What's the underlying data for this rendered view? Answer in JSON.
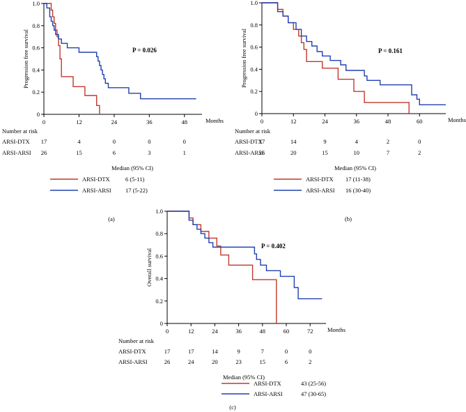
{
  "colors": {
    "arsi_dtx": "#c0392b",
    "arsi_arsi": "#2040b0",
    "axis": "#000000"
  },
  "chart_data": [
    {
      "type": "line",
      "panel_label": "(a)",
      "ylabel": "Progression free survival",
      "xlabel": "Months",
      "xticks": [
        0,
        12,
        24,
        36,
        48
      ],
      "xtick_labels": [
        "0",
        "12",
        "24",
        "36",
        "48"
      ],
      "yticks": [
        0,
        0.2,
        0.4,
        0.6,
        0.8,
        1.0
      ],
      "ytick_labels": [
        "0",
        "0.2",
        "0.4",
        "0.6",
        "0.8",
        "1.0"
      ],
      "xlim": [
        0,
        54
      ],
      "ylim": [
        0,
        1
      ],
      "p_value": "P = 0.026",
      "series": [
        {
          "name": "ARSI-DTX",
          "color_key": "arsi_dtx",
          "x": [
            0,
            2.5,
            3,
            3.5,
            4,
            4.5,
            5,
            5.5,
            6,
            10,
            14,
            18,
            19
          ],
          "y": [
            1,
            0.94,
            0.88,
            0.82,
            0.76,
            0.7,
            0.62,
            0.5,
            0.34,
            0.25,
            0.17,
            0.08,
            0
          ]
        },
        {
          "name": "ARSI-ARSI",
          "color_key": "arsi_arsi",
          "x": [
            0,
            1,
            2,
            2.5,
            3,
            3.5,
            4,
            5,
            6,
            8,
            12,
            18,
            18.5,
            19,
            19.5,
            20,
            20.5,
            21,
            22,
            24,
            29,
            33,
            52
          ],
          "y": [
            1,
            0.96,
            0.88,
            0.84,
            0.8,
            0.76,
            0.72,
            0.68,
            0.64,
            0.6,
            0.56,
            0.52,
            0.48,
            0.44,
            0.4,
            0.36,
            0.32,
            0.28,
            0.24,
            0.24,
            0.19,
            0.14,
            0.14
          ]
        }
      ],
      "risk": {
        "title": "Number at risk",
        "rows": [
          {
            "label": "ARSI-DTX",
            "values": [
              "17",
              "4",
              "0",
              "0",
              "0"
            ]
          },
          {
            "label": "ARSI-ARSI",
            "values": [
              "26",
              "15",
              "6",
              "3",
              "1"
            ]
          }
        ]
      },
      "median": {
        "title": "Median (95% CI)",
        "rows": [
          {
            "label": "ARSI-DTX",
            "value": "6 (5-11)"
          },
          {
            "label": "ARSI-ARSI",
            "value": "17 (5-22)"
          }
        ]
      }
    },
    {
      "type": "line",
      "panel_label": "(b)",
      "ylabel": "Progression free survival",
      "xlabel": "Months",
      "xticks": [
        0,
        12,
        24,
        36,
        48,
        60
      ],
      "xtick_labels": [
        "0",
        "12",
        "24",
        "36",
        "48",
        "60"
      ],
      "yticks": [
        0,
        0.2,
        0.4,
        0.6,
        0.8,
        1.0
      ],
      "ytick_labels": [
        "0",
        "0.2",
        "0.4",
        "0.6",
        "0.8",
        "1.0"
      ],
      "xlim": [
        0,
        70
      ],
      "ylim": [
        0,
        1
      ],
      "p_value": "P = 0.161",
      "series": [
        {
          "name": "ARSI-DTX",
          "color_key": "arsi_dtx",
          "x": [
            0,
            6,
            8,
            10,
            12,
            14,
            15,
            16,
            17,
            23,
            29,
            35,
            39,
            40,
            56
          ],
          "y": [
            1,
            0.94,
            0.88,
            0.82,
            0.76,
            0.7,
            0.64,
            0.58,
            0.47,
            0.41,
            0.31,
            0.2,
            0.1,
            0.1,
            0
          ]
        },
        {
          "name": "ARSI-ARSI",
          "color_key": "arsi_arsi",
          "x": [
            0,
            6,
            8,
            10,
            13,
            15,
            17,
            19,
            21,
            23,
            26,
            30,
            32,
            39,
            40,
            45,
            57,
            59,
            60,
            70
          ],
          "y": [
            1,
            0.92,
            0.88,
            0.82,
            0.76,
            0.7,
            0.65,
            0.61,
            0.56,
            0.52,
            0.48,
            0.44,
            0.39,
            0.34,
            0.3,
            0.26,
            0.17,
            0.13,
            0.08,
            0.08
          ]
        }
      ],
      "risk": {
        "title": "Number at risk",
        "rows": [
          {
            "label": "ARSI-DTX",
            "values": [
              "17",
              "14",
              "9",
              "4",
              "2",
              "0"
            ]
          },
          {
            "label": "ARSI-ARSI",
            "values": [
              "26",
              "20",
              "15",
              "10",
              "7",
              "2"
            ]
          }
        ]
      },
      "median": {
        "title": "Median (95% CI)",
        "rows": [
          {
            "label": "ARSI-DTX",
            "value": "17 (11-38)"
          },
          {
            "label": "ARSI-ARSI",
            "value": "16 (30-40)"
          }
        ]
      }
    },
    {
      "type": "line",
      "panel_label": "(c)",
      "ylabel": "Overall survival",
      "xlabel": "Months",
      "xticks": [
        0,
        12,
        24,
        36,
        48,
        60,
        72
      ],
      "xtick_labels": [
        "0",
        "12",
        "24",
        "36",
        "48",
        "60",
        "72"
      ],
      "yticks": [
        0,
        0.2,
        0.4,
        0.6,
        0.8,
        1.0
      ],
      "ytick_labels": [
        "0",
        "0.2",
        "0.4",
        "0.6",
        "0.8",
        "1.0"
      ],
      "xlim": [
        0,
        80
      ],
      "ylim": [
        0,
        1
      ],
      "p_value": "P = 0.402",
      "series": [
        {
          "name": "ARSI-DTX",
          "color_key": "arsi_dtx",
          "x": [
            0,
            11,
            13,
            17,
            21,
            25,
            27,
            31,
            33,
            43,
            55
          ],
          "y": [
            1,
            0.94,
            0.88,
            0.82,
            0.76,
            0.69,
            0.61,
            0.52,
            0.52,
            0.39,
            0
          ]
        },
        {
          "name": "ARSI-ARSI",
          "color_key": "arsi_arsi",
          "x": [
            0,
            11,
            13,
            15,
            17,
            19,
            21,
            23,
            25,
            27,
            33,
            44,
            45,
            47,
            50,
            57,
            64,
            66,
            78
          ],
          "y": [
            1,
            0.92,
            0.88,
            0.84,
            0.8,
            0.76,
            0.72,
            0.68,
            0.68,
            0.68,
            0.68,
            0.62,
            0.57,
            0.52,
            0.47,
            0.42,
            0.32,
            0.22,
            0.22
          ]
        }
      ],
      "risk": {
        "title": "Number at risk",
        "rows": [
          {
            "label": "ARSI-DTX",
            "values": [
              "17",
              "17",
              "14",
              "9",
              "7",
              "0",
              "0"
            ]
          },
          {
            "label": "ARSI-ARSI",
            "values": [
              "26",
              "24",
              "20",
              "23",
              "15",
              "6",
              "2"
            ]
          }
        ]
      },
      "median": {
        "title": "Median (95% CI)",
        "rows": [
          {
            "label": "ARSI-DTX",
            "value": "43 (25-56)"
          },
          {
            "label": "ARSI-ARSI",
            "value": "47 (30-65)"
          }
        ]
      }
    }
  ]
}
